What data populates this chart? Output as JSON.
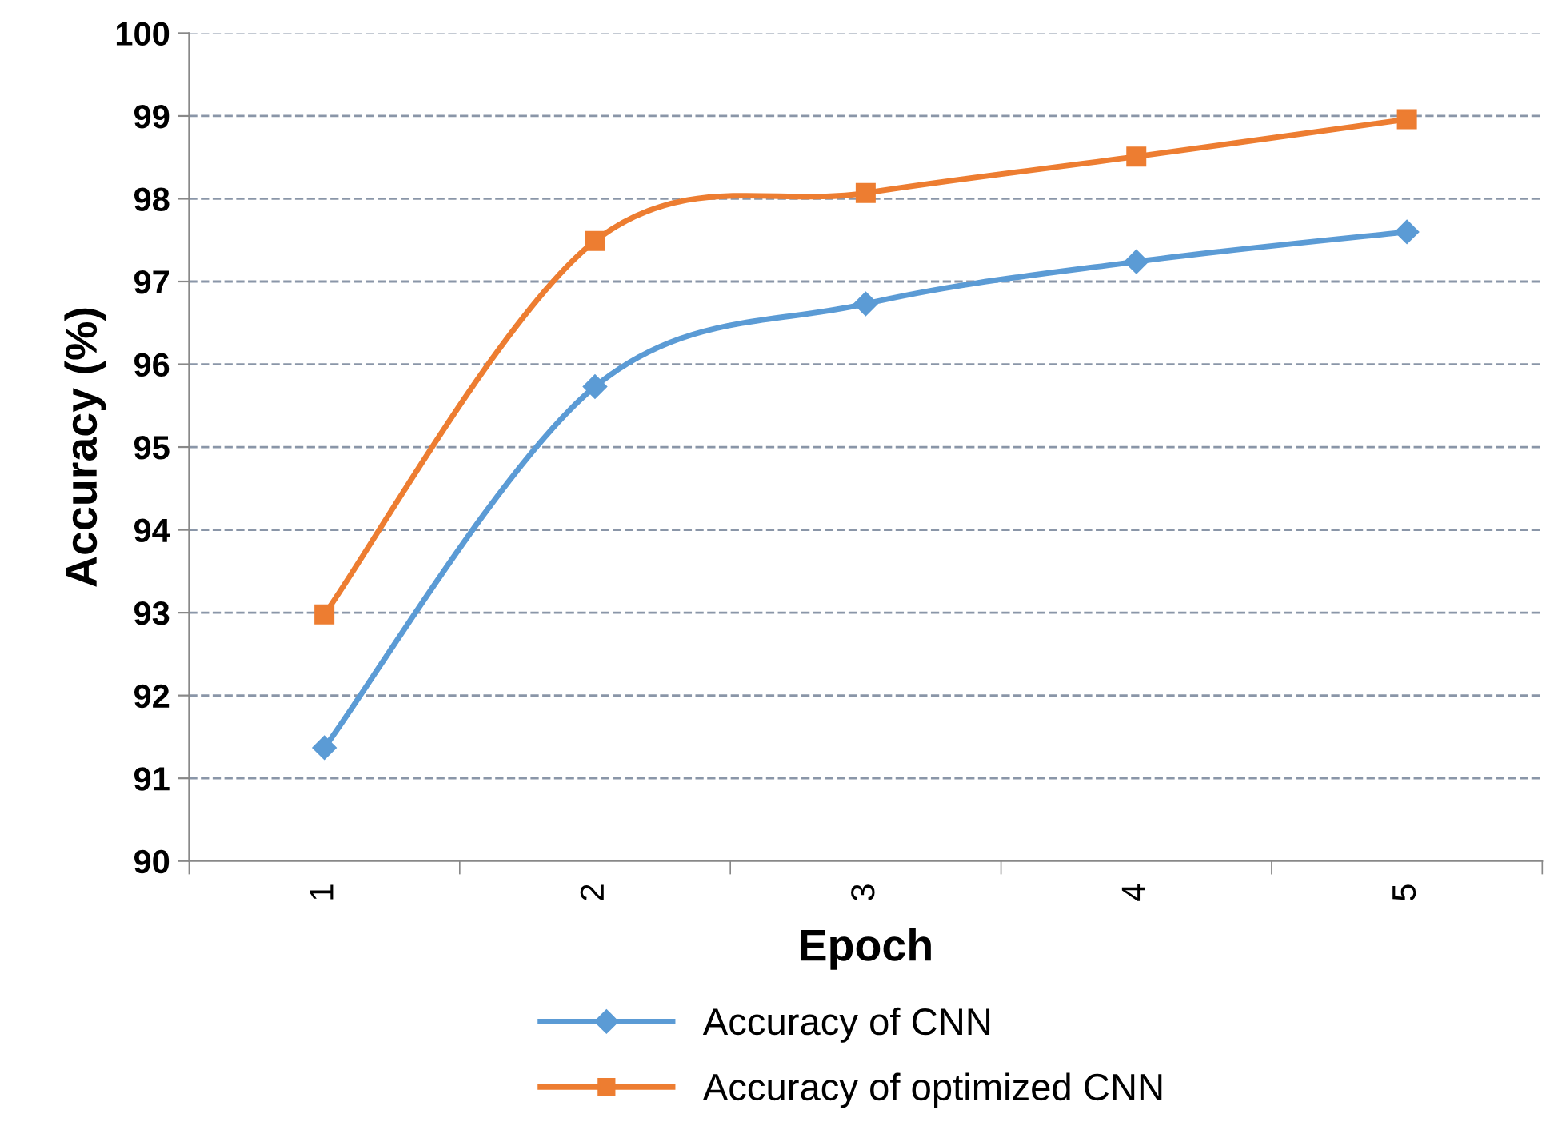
{
  "chart_data": {
    "type": "line",
    "xlabel": "Epoch",
    "ylabel": "Accuracy (%)",
    "categories": [
      "1",
      "2",
      "3",
      "4",
      "5"
    ],
    "series": [
      {
        "name": "Accuracy of CNN",
        "color": "#5b9bd5",
        "marker": "diamond",
        "values": [
          91.37,
          95.73,
          96.73,
          97.24,
          97.6
        ]
      },
      {
        "name": "Accuracy of optimized CNN",
        "color": "#ed7d31",
        "marker": "square",
        "values": [
          92.98,
          97.49,
          98.07,
          98.51,
          98.96
        ]
      }
    ],
    "ylim": [
      90,
      100
    ],
    "yticks": [
      90,
      91,
      92,
      93,
      94,
      95,
      96,
      97,
      98,
      99,
      100
    ],
    "grid": "y",
    "legend": "bottom",
    "line_style": "solid"
  }
}
